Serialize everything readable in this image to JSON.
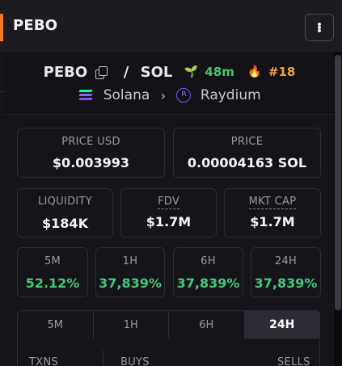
{
  "header": {
    "title": "PEBO",
    "accent_color": "#f47a1f",
    "menu_icon": "vertical-dots-icon"
  },
  "token": {
    "symbol": "PEBO",
    "separator": "/",
    "quote": "SOL",
    "age": "48m",
    "rank": "#18",
    "chain": "Solana",
    "dex": "Raydium"
  },
  "stats": {
    "price_usd": {
      "label": "PRICE USD",
      "value": "$0.003993"
    },
    "price": {
      "label": "PRICE",
      "value": "0.00004163 SOL"
    },
    "liquidity": {
      "label": "LIQUIDITY",
      "value": "$184K"
    },
    "fdv": {
      "label": "FDV",
      "value": "$1.7M"
    },
    "mkt_cap": {
      "label": "MKT CAP",
      "value": "$1.7M"
    }
  },
  "changes": [
    {
      "label": "5M",
      "value": "52.12%"
    },
    {
      "label": "1H",
      "value": "37,839%"
    },
    {
      "label": "6H",
      "value": "37,839%"
    },
    {
      "label": "24H",
      "value": "37,839%"
    }
  ],
  "tabs": [
    {
      "label": "5M"
    },
    {
      "label": "1H"
    },
    {
      "label": "6H"
    },
    {
      "label": "24H",
      "active": true
    }
  ],
  "txns": {
    "txns_label": "TXNS",
    "buys_label": "BUYS",
    "sells_label": "SELLS"
  },
  "colors": {
    "positive": "#47c77a",
    "age": "#4fc36a",
    "rank": "#f2a23a"
  }
}
